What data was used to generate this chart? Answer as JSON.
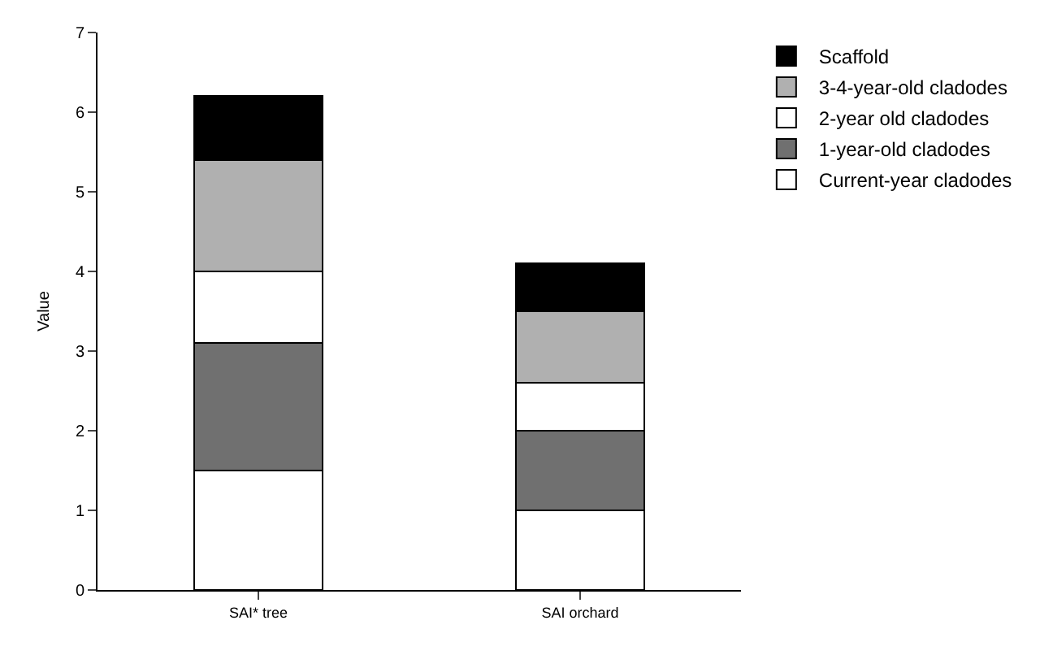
{
  "chart_data": {
    "type": "bar",
    "stacked": true,
    "ylabel": "Value",
    "categories": [
      "SAI* tree",
      "SAI orchard"
    ],
    "series": [
      {
        "name": "Current-year cladodes",
        "color": "#ffffff",
        "values": [
          1.5,
          1.0
        ]
      },
      {
        "name": "1-year-old cladodes",
        "color": "#707070",
        "values": [
          1.6,
          1.0
        ]
      },
      {
        "name": "2-year old cladodes",
        "color": "#ffffff",
        "values": [
          0.9,
          0.6
        ]
      },
      {
        "name": "3-4-year-old cladodes",
        "color": "#b0b0b0",
        "values": [
          1.4,
          0.9
        ]
      },
      {
        "name": "Scaffold",
        "color": "#000000",
        "values": [
          0.8,
          0.6
        ]
      }
    ],
    "ylim": [
      0,
      7
    ],
    "yticks": [
      0,
      1,
      2,
      3,
      4,
      5,
      6,
      7
    ],
    "grid": false,
    "legend": "top right"
  }
}
